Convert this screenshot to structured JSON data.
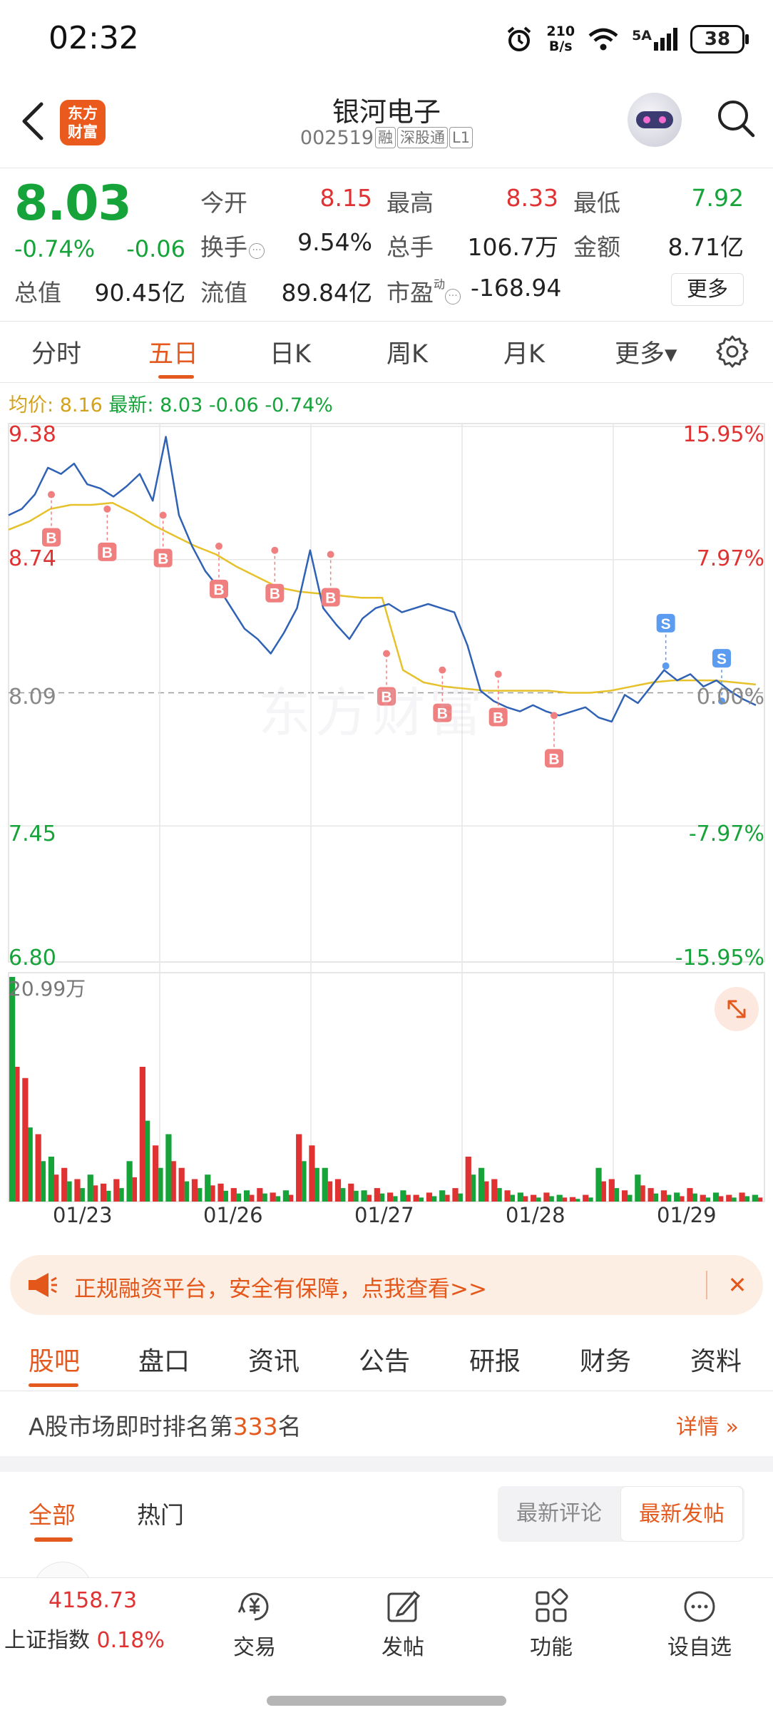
{
  "status_bar": {
    "time": "02:32",
    "net_speed_value": "210",
    "net_speed_unit": "B/s",
    "signal_label": "5A",
    "battery": "38",
    "icons": [
      "alarm-icon",
      "wifi-icon",
      "signal-icon",
      "battery-icon"
    ]
  },
  "header": {
    "logo_line1": "东方",
    "logo_line2": "财富",
    "stock_name": "银河电子",
    "stock_code": "002519",
    "tags": [
      "融",
      "深股通",
      "L1"
    ]
  },
  "quote": {
    "price": "8.03",
    "change_pct": "-0.74%",
    "change": "-0.06",
    "open_label": "今开",
    "open": "8.15",
    "high_label": "最高",
    "high": "8.33",
    "low_label": "最低",
    "low": "7.92",
    "turnover_label": "换手",
    "turnover": "9.54%",
    "volume_label": "总手",
    "volume": "106.7万",
    "amount_label": "金额",
    "amount": "8.71亿",
    "mktcap_label": "总值",
    "mktcap": "90.45亿",
    "float_label": "流值",
    "float_cap": "89.84亿",
    "pe_label": "市盈",
    "pe_sup": "动",
    "pe": "-168.94",
    "more_button": "更多"
  },
  "period_tabs": [
    "分时",
    "五日",
    "日K",
    "周K",
    "月K",
    "更多▾"
  ],
  "active_period": "五日",
  "info_line": {
    "avg_label": "均价:",
    "avg": "8.16",
    "latest_label": "最新:",
    "latest": "8.03",
    "change": "-0.06",
    "change_pct": "-0.74%"
  },
  "chart_data": {
    "type": "line",
    "title": "",
    "y_ticks": [
      "9.38",
      "8.74",
      "8.09",
      "7.45",
      "6.80"
    ],
    "y_right_ticks": [
      "15.95%",
      "7.97%",
      "0.00%",
      "-7.97%",
      "-15.95%"
    ],
    "ylim": [
      6.8,
      9.38
    ],
    "reference_price": 8.09,
    "x_ticks": [
      "01/23",
      "01/26",
      "01/27",
      "01/28",
      "01/29"
    ],
    "volume_max_label": "20.99万",
    "series": [
      {
        "values": [
          8.95,
          8.98,
          9.05,
          9.18,
          9.15,
          9.2,
          9.1,
          9.08,
          9.04,
          9.09,
          9.15,
          9.02,
          9.33,
          8.95,
          8.8,
          8.68,
          8.6,
          8.5,
          8.4,
          8.35,
          8.28,
          8.38,
          8.5,
          8.78,
          8.5,
          8.42,
          8.35,
          8.45,
          8.5,
          8.52,
          8.48,
          8.5,
          8.52,
          8.5,
          8.48,
          8.32,
          8.1,
          8.05,
          8.02,
          8.0,
          8.03,
          8.0,
          7.98,
          8.0,
          8.02,
          7.97,
          7.95,
          8.08,
          8.04,
          8.12,
          8.2,
          8.15,
          8.18,
          8.12,
          8.15,
          8.1,
          8.06,
          8.03
        ]
      },
      {
        "values": [
          8.88,
          8.92,
          8.98,
          9.0,
          9.0,
          9.01,
          8.96,
          8.9,
          8.85,
          8.8,
          8.76,
          8.7,
          8.65,
          8.6,
          8.58,
          8.57,
          8.56,
          8.55,
          8.55,
          8.2,
          8.14,
          8.12,
          8.11,
          8.1,
          8.1,
          8.1,
          8.1,
          8.09,
          8.09,
          8.1,
          8.12,
          8.14,
          8.15,
          8.15,
          8.15,
          8.14,
          8.13
        ]
      }
    ],
    "trade_markers": {
      "buy_label": "B",
      "sell_label": "S",
      "buy_prices": [
        9.05,
        8.98,
        8.95,
        8.8,
        8.78,
        8.76,
        8.28,
        8.2,
        8.18,
        7.98
      ],
      "sell_prices": [
        8.22,
        8.05
      ]
    },
    "volume_bars": [
      1.0,
      0.55,
      0.3,
      0.2,
      0.15,
      0.1,
      0.12,
      0.08,
      0.1,
      0.18,
      0.6,
      0.25,
      0.3,
      0.15,
      0.1,
      0.12,
      0.08,
      0.06,
      0.05,
      0.06,
      0.04,
      0.05,
      0.3,
      0.25,
      0.15,
      0.1,
      0.08,
      0.05,
      0.06,
      0.04,
      0.05,
      0.03,
      0.04,
      0.05,
      0.06,
      0.2,
      0.15,
      0.1,
      0.05,
      0.04,
      0.03,
      0.04,
      0.03,
      0.02,
      0.03,
      0.15,
      0.1,
      0.05,
      0.12,
      0.06,
      0.05,
      0.04,
      0.06,
      0.03,
      0.04,
      0.03,
      0.04,
      0.03
    ],
    "colors": {
      "price_line": "#2f62b5",
      "avg_line": "#e6c12a",
      "buy": "#f08080",
      "sell": "#5b9bf0"
    }
  },
  "ad_banner": {
    "text": "正规融资平台，安全有保障，点我查看>>",
    "close": "✕"
  },
  "forum_tabs": [
    "股吧",
    "盘口",
    "资讯",
    "公告",
    "研报",
    "财务",
    "资料"
  ],
  "active_forum_tab": "股吧",
  "rank": {
    "prefix": "A股市场即时排名第",
    "number": "333",
    "suffix": "名",
    "detail": "详情"
  },
  "post_tabs": {
    "all": "全部",
    "hot": "热门",
    "sort_latest_comment": "最新评论",
    "sort_latest_post": "最新发帖"
  },
  "bottom_nav": {
    "index_value": "4158.73",
    "index_name": "上证指数",
    "index_pct": "0.18%",
    "items": [
      {
        "label": "交易",
        "icon": "trade-icon"
      },
      {
        "label": "发帖",
        "icon": "post-icon"
      },
      {
        "label": "功能",
        "icon": "functions-icon"
      },
      {
        "label": "设自选",
        "icon": "watchlist-icon"
      }
    ]
  }
}
